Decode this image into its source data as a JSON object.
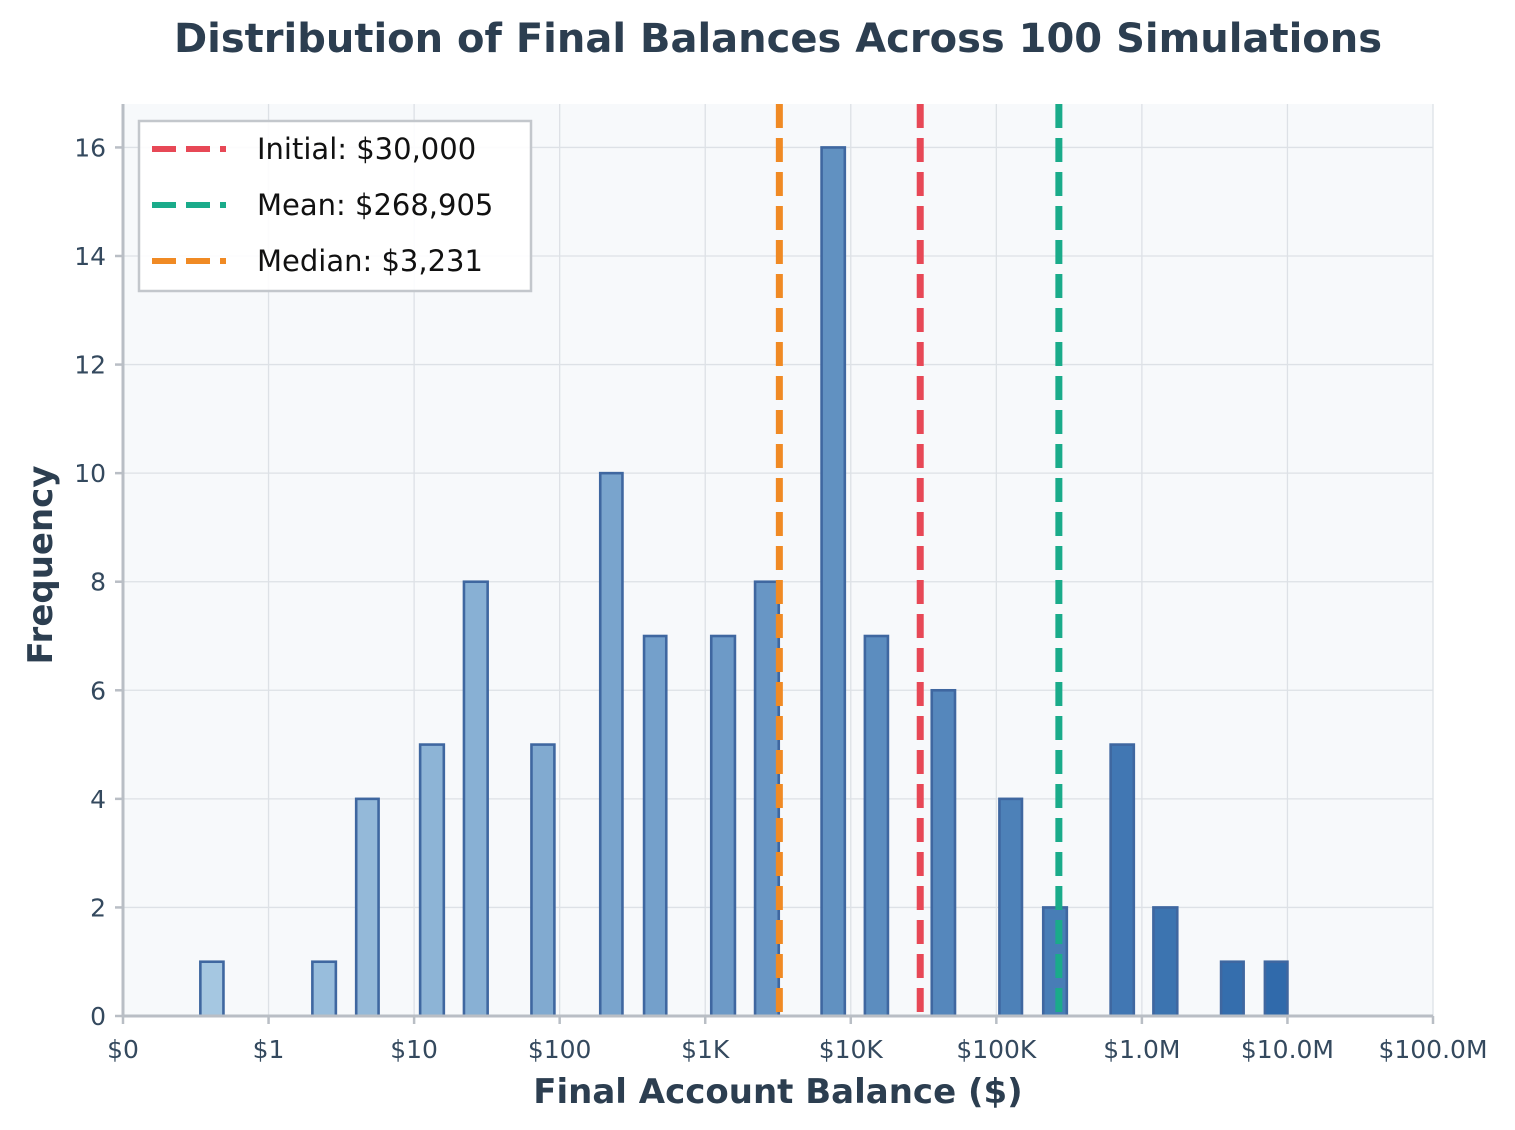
{
  "chart_data": {
    "type": "bar",
    "title": "Distribution of Final Balances Across 100 Simulations",
    "xlabel": "Final Account Balance ($)",
    "ylabel": "Frequency",
    "x_scale": "log",
    "xlim": [
      0.1,
      100000000
    ],
    "ylim": [
      0,
      16.8
    ],
    "x_ticks": [
      {
        "value": 0.1,
        "label": "$0"
      },
      {
        "value": 1,
        "label": "$1"
      },
      {
        "value": 10,
        "label": "$10"
      },
      {
        "value": 100,
        "label": "$100"
      },
      {
        "value": 1000,
        "label": "$1K"
      },
      {
        "value": 10000,
        "label": "$10K"
      },
      {
        "value": 100000,
        "label": "$100K"
      },
      {
        "value": 1000000,
        "label": "$1.0M"
      },
      {
        "value": 10000000,
        "label": "$10.0M"
      },
      {
        "value": 100000000,
        "label": "$100.0M"
      }
    ],
    "y_ticks": [
      0,
      2,
      4,
      6,
      8,
      10,
      12,
      14,
      16
    ],
    "bars": [
      {
        "x_low": 0.34,
        "x_high": 0.49,
        "count": 1
      },
      {
        "x_low": 2.0,
        "x_high": 2.9,
        "count": 1
      },
      {
        "x_low": 4.0,
        "x_high": 5.7,
        "count": 4
      },
      {
        "x_low": 11,
        "x_high": 16,
        "count": 5
      },
      {
        "x_low": 22,
        "x_high": 32,
        "count": 8
      },
      {
        "x_low": 64,
        "x_high": 92,
        "count": 5
      },
      {
        "x_low": 190,
        "x_high": 270,
        "count": 10
      },
      {
        "x_low": 380,
        "x_high": 540,
        "count": 7
      },
      {
        "x_low": 1100,
        "x_high": 1600,
        "count": 7
      },
      {
        "x_low": 2200,
        "x_high": 3200,
        "count": 8
      },
      {
        "x_low": 6300,
        "x_high": 9100,
        "count": 16
      },
      {
        "x_low": 12500,
        "x_high": 18000,
        "count": 7
      },
      {
        "x_low": 36000,
        "x_high": 52000,
        "count": 6
      },
      {
        "x_low": 105000,
        "x_high": 150000,
        "count": 4
      },
      {
        "x_low": 210000,
        "x_high": 305000,
        "count": 2
      },
      {
        "x_low": 610000,
        "x_high": 880000,
        "count": 5
      },
      {
        "x_low": 1200000,
        "x_high": 1750000,
        "count": 2
      },
      {
        "x_low": 3500000,
        "x_high": 5000000,
        "count": 1
      },
      {
        "x_low": 7000000,
        "x_high": 10000000,
        "count": 1
      }
    ],
    "reference_lines": [
      {
        "name": "Initial: $30,000",
        "value": 30000,
        "color": "#e74856"
      },
      {
        "name": "Mean: $268,905",
        "value": 268905,
        "color": "#1aab8a"
      },
      {
        "name": "Median: $3,231",
        "value": 3231,
        "color": "#f08a24"
      }
    ],
    "legend_position": "top-left",
    "grid": true,
    "colors": {
      "bar_light": "#a6c8e2",
      "bar_dark": "#2f69aa",
      "bar_edge": "#3f67a0",
      "plot_bg": "#f7f9fb",
      "grid": "#dde1e6",
      "spine": "#b9bec5"
    }
  }
}
